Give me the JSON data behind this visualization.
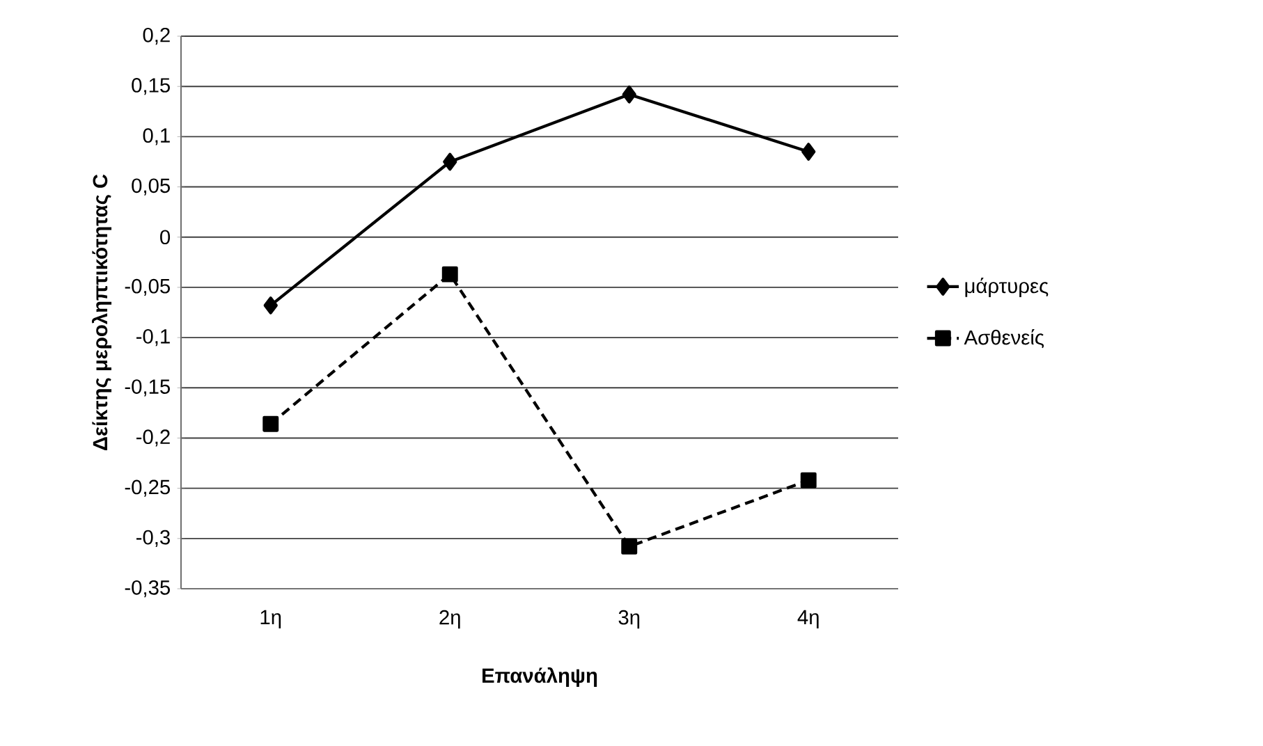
{
  "chart_data": {
    "type": "line",
    "xlabel": "Επανάληψη",
    "ylabel": "Δείκτης μεροληπτικότητας C",
    "categories": [
      "1η",
      "2η",
      "3η",
      "4η"
    ],
    "series": [
      {
        "name": "μάρτυρες",
        "color": "#000000",
        "marker": "diamond",
        "line_style": "solid",
        "values": [
          -0.068,
          0.075,
          0.142,
          0.085
        ]
      },
      {
        "name": "Ασθενείς",
        "color": "#000000",
        "marker": "square",
        "line_style": "dashed",
        "values": [
          -0.186,
          -0.037,
          -0.308,
          -0.242
        ]
      }
    ],
    "ylim": [
      -0.35,
      0.2
    ],
    "yticks": [
      {
        "value": -0.35,
        "label": "-0,35"
      },
      {
        "value": -0.3,
        "label": "-0,3"
      },
      {
        "value": -0.25,
        "label": "-0,25"
      },
      {
        "value": -0.2,
        "label": "-0,2"
      },
      {
        "value": -0.15,
        "label": "-0,15"
      },
      {
        "value": -0.1,
        "label": "-0,1"
      },
      {
        "value": -0.05,
        "label": "-0,05"
      },
      {
        "value": 0,
        "label": "0"
      },
      {
        "value": 0.05,
        "label": "0,05"
      },
      {
        "value": 0.1,
        "label": "0,1"
      },
      {
        "value": 0.15,
        "label": "0,15"
      },
      {
        "value": 0.2,
        "label": "0,2"
      }
    ],
    "grid": "y",
    "legend": "right"
  }
}
